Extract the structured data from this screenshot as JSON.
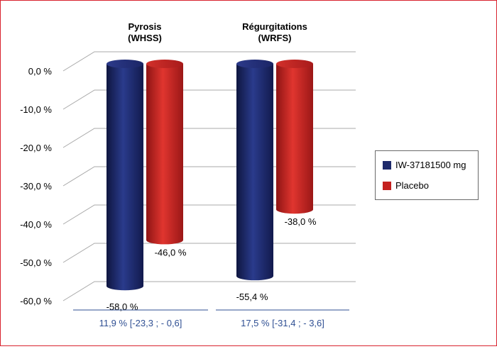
{
  "chart_data": {
    "type": "bar",
    "categories": [
      {
        "line1": "Pyrosis",
        "line2": "(WHSS)"
      },
      {
        "line1": "Régurgitations",
        "line2": "(WRFS)"
      }
    ],
    "series": [
      {
        "name": "IW-37181500 mg",
        "color": "#1e2a6b",
        "values": [
          -58.0,
          -55.4
        ],
        "labels": [
          "-58,0 %",
          "-55,4 %"
        ]
      },
      {
        "name": "Placebo",
        "color": "#c4211f",
        "values": [
          -46.0,
          -38.0
        ],
        "labels": [
          "-46,0 %",
          "-38,0 %"
        ]
      }
    ],
    "differences": [
      "11,9 % [-23,3 ; - 0,6]",
      "17,5 % [-31,4 ; - 3,6]"
    ],
    "yticks": [
      0,
      -10,
      -20,
      -30,
      -40,
      -50,
      -60
    ],
    "ytick_labels": [
      "0,0 %",
      "-10,0 %",
      "-20,0 %",
      "-30,0 %",
      "-40,0 %",
      "-50,0 %",
      "-60,0 %"
    ],
    "ylim": [
      -60,
      0
    ],
    "legend_position": "right",
    "grid": true,
    "colors": {
      "navy": "#1e2a6b",
      "red": "#c4211f",
      "frame": "#d9232e",
      "difference_text": "#2f4f93"
    }
  }
}
